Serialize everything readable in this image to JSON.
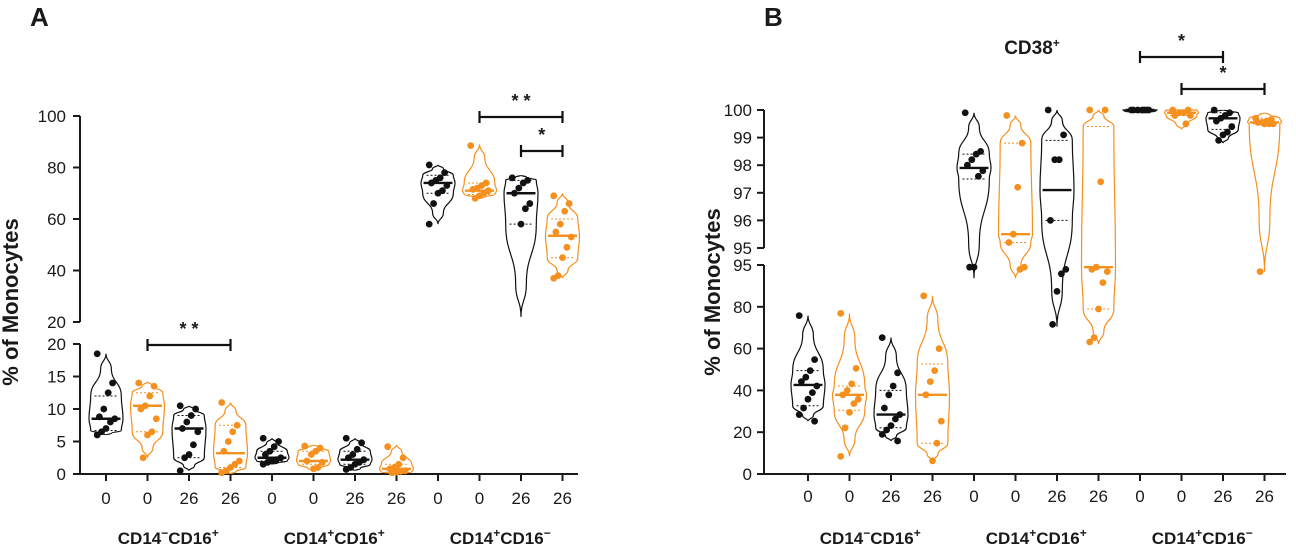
{
  "colors": {
    "black": "#111111",
    "orange": "#f5901e"
  },
  "chart_data": [
    {
      "panel": "A",
      "type": "violin",
      "title": "",
      "ylabel": "% of Monocytes",
      "xlabel": "",
      "broken_y_axis": true,
      "y_segments": [
        {
          "ylim": [
            0,
            20
          ],
          "ticks": [
            "0",
            "5",
            "10",
            "15",
            "20"
          ]
        },
        {
          "ylim": [
            20,
            100
          ],
          "ticks": [
            "20",
            "40",
            "60",
            "80",
            "100"
          ]
        }
      ],
      "categories": [
        "0",
        "0",
        "26",
        "26",
        "0",
        "0",
        "26",
        "26",
        "0",
        "0",
        "26",
        "26"
      ],
      "groups": [
        "CD14⁻CD16⁺",
        "CD14⁺CD16⁺",
        "CD14⁺CD16⁻"
      ],
      "series_colors": [
        "black",
        "orange",
        "black",
        "orange",
        "black",
        "orange",
        "black",
        "orange",
        "black",
        "orange",
        "black",
        "orange"
      ],
      "violins": [
        {
          "min": 6,
          "max": 18.5,
          "median": 8.5,
          "q1": 6.7,
          "q3": 12,
          "points": [
            18.5,
            14,
            12.5,
            10,
            8.8,
            8.5,
            8,
            7,
            6.5,
            6
          ]
        },
        {
          "min": 2.5,
          "max": 14.2,
          "median": 10.5,
          "q1": 6.5,
          "q3": 12.5,
          "points": [
            14,
            13.5,
            12,
            10.5,
            10,
            8.5,
            6.5,
            6,
            2.5
          ]
        },
        {
          "min": 0.5,
          "max": 10.5,
          "median": 7,
          "q1": 2.5,
          "q3": 9,
          "points": [
            10.5,
            10,
            9,
            8,
            7,
            6.5,
            4.5,
            3,
            2.5,
            0.5
          ]
        },
        {
          "min": 0,
          "max": 11,
          "median": 3.2,
          "q1": 1,
          "q3": 7.5,
          "points": [
            11,
            7.5,
            6.5,
            5,
            3.5,
            2,
            1.5,
            1,
            0.5,
            0.2
          ]
        },
        {
          "min": 1.5,
          "max": 5.5,
          "median": 2.5,
          "q1": 2,
          "q3": 3.5,
          "points": [
            5.5,
            5,
            4.2,
            3.5,
            3,
            2.5,
            2.2,
            2,
            1.8,
            1.5
          ]
        },
        {
          "min": 0.5,
          "max": 4.5,
          "median": 2,
          "q1": 1.5,
          "q3": 3.5,
          "points": [
            4.3,
            4,
            3.5,
            3,
            2,
            1.8,
            1,
            0.8
          ]
        },
        {
          "min": 0.5,
          "max": 5.5,
          "median": 2.2,
          "q1": 1.5,
          "q3": 3.5,
          "points": [
            5.5,
            4.8,
            3.8,
            3,
            2.5,
            2.2,
            1.8,
            1.5,
            1,
            0.7
          ]
        },
        {
          "min": 0,
          "max": 4.5,
          "median": 0.8,
          "q1": 0.3,
          "q3": 1.5,
          "points": [
            4.2,
            2.5,
            1.5,
            1,
            0.8,
            0.5,
            0.4,
            0.3,
            0.2
          ]
        },
        {
          "min": 58,
          "max": 81,
          "median": 74,
          "q1": 70,
          "q3": 77,
          "points": [
            81,
            78,
            76,
            75,
            74,
            73,
            71,
            70,
            66,
            58
          ]
        },
        {
          "min": 68,
          "max": 89,
          "median": 71,
          "q1": 69.5,
          "q3": 74,
          "points": [
            88.5,
            74,
            73,
            72,
            71.5,
            71,
            70,
            69,
            68
          ]
        },
        {
          "min": 22,
          "max": 77,
          "median": 70,
          "q1": 58,
          "q3": 75,
          "points": [
            76,
            75,
            74,
            72,
            70,
            66,
            64,
            58
          ]
        },
        {
          "min": 37,
          "max": 70,
          "median": 53.5,
          "q1": 45,
          "q3": 60,
          "points": [
            69,
            66,
            63,
            58,
            55,
            53,
            49,
            45,
            38,
            37
          ]
        }
      ],
      "significance": [
        {
          "from": 1,
          "to": 3,
          "label": "* *"
        },
        {
          "from": 9,
          "to": 11,
          "label": "* *"
        },
        {
          "from": 10,
          "to": 11,
          "label": "*"
        }
      ]
    },
    {
      "panel": "B",
      "type": "violin",
      "title": "CD38⁺",
      "ylabel": "% of Monocytes",
      "xlabel": "",
      "broken_y_axis": true,
      "y_segments": [
        {
          "ylim": [
            0,
            95
          ],
          "ticks": [
            "0",
            "20",
            "40",
            "60",
            "80",
            "95"
          ]
        },
        {
          "ylim": [
            95,
            100
          ],
          "ticks": [
            "95",
            "96",
            "97",
            "98",
            "99",
            "100"
          ]
        }
      ],
      "categories": [
        "0",
        "0",
        "26",
        "26",
        "0",
        "0",
        "26",
        "26",
        "0",
        "0",
        "26",
        "26"
      ],
      "groups": [
        "CD14⁻CD16⁺",
        "CD14⁺CD16⁺",
        "CD14⁺CD16⁻"
      ],
      "series_colors": [
        "black",
        "orange",
        "black",
        "orange",
        "black",
        "orange",
        "black",
        "orange",
        "black",
        "orange",
        "black",
        "orange"
      ],
      "violins": [
        {
          "min": 24,
          "max": 72,
          "median": 40.5,
          "q1": 31,
          "q3": 47,
          "points": [
            72,
            52,
            47,
            44,
            42,
            40,
            37,
            34,
            30,
            27,
            24
          ]
        },
        {
          "min": 8,
          "max": 73,
          "median": 36,
          "q1": 29,
          "q3": 40,
          "points": [
            73,
            48,
            41,
            38,
            36,
            34,
            32,
            28,
            21,
            8
          ]
        },
        {
          "min": 15,
          "max": 62,
          "median": 27,
          "q1": 21,
          "q3": 38,
          "points": [
            62,
            46,
            40,
            36,
            30,
            27,
            25,
            22,
            20,
            18,
            15
          ]
        },
        {
          "min": 6,
          "max": 81,
          "median": 36,
          "q1": 14,
          "q3": 50,
          "points": [
            81,
            57,
            47,
            42,
            36,
            24,
            14,
            6
          ]
        },
        {
          "min": 89,
          "max": 99.9,
          "median": 97.9,
          "q1": 97.5,
          "q3": 98.4,
          "points": [
            99.9,
            98.5,
            98.4,
            98.2,
            98,
            97.8,
            97.6,
            94,
            94
          ]
        },
        {
          "min": 89,
          "max": 99.8,
          "median": 95.5,
          "q1": 95.2,
          "q3": 98.8,
          "points": [
            99.8,
            98.8,
            97.2,
            95.5,
            95.2,
            94,
            93
          ]
        },
        {
          "min": 67,
          "max": 100,
          "median": 97.1,
          "q1": 96,
          "q3": 98.9,
          "points": [
            100,
            99.1,
            98.2,
            98.2,
            96,
            93,
            91,
            83,
            68
          ]
        },
        {
          "min": 59,
          "max": 100,
          "median": 94,
          "q1": 75,
          "q3": 99.4,
          "points": [
            100,
            100,
            97.4,
            94,
            93,
            92,
            87,
            75,
            62,
            60
          ]
        },
        {
          "min": 99.9,
          "max": 100,
          "median": 100,
          "q1": 99.95,
          "q3": 100,
          "points": [
            100,
            100,
            100,
            100,
            100,
            100,
            100
          ]
        },
        {
          "min": 99.3,
          "max": 100,
          "median": 99.9,
          "q1": 99.8,
          "q3": 100,
          "points": [
            100,
            100,
            99.9,
            99.9,
            99.8,
            99.8,
            99.5
          ]
        },
        {
          "min": 98.8,
          "max": 100,
          "median": 99.7,
          "q1": 99.3,
          "q3": 99.9,
          "points": [
            100,
            99.9,
            99.8,
            99.7,
            99.6,
            99.4,
            99.2,
            99.1,
            98.9
          ]
        },
        {
          "min": 92,
          "max": 99.9,
          "median": 99.55,
          "q1": 99.5,
          "q3": 99.7,
          "points": [
            99.7,
            99.65,
            99.6,
            99.55,
            99.55,
            99.5,
            99.5,
            99.5,
            92
          ]
        }
      ],
      "significance": [
        {
          "from": 8,
          "to": 10,
          "label": "*"
        },
        {
          "from": 9,
          "to": 11,
          "label": "*"
        }
      ]
    }
  ]
}
